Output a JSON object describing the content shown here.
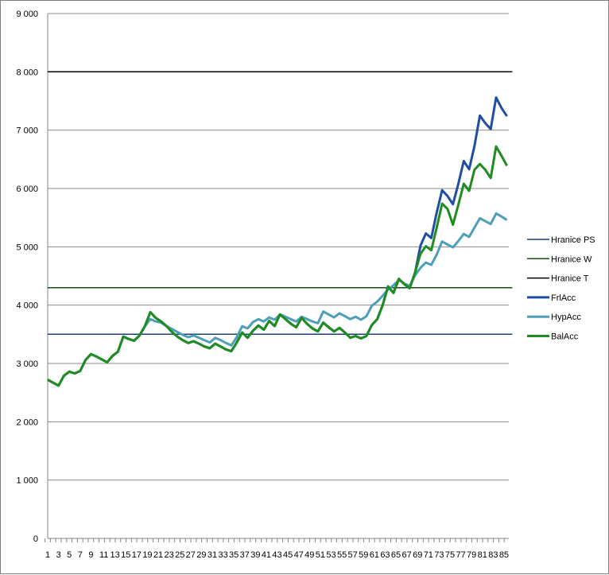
{
  "chart_data": {
    "type": "line",
    "ylim": [
      0,
      9000
    ],
    "yticks": [
      0,
      1000,
      2000,
      3000,
      4000,
      5000,
      6000,
      7000,
      8000,
      9000
    ],
    "ytick_labels": [
      "0",
      "1 000",
      "2 000",
      "3 000",
      "4 000",
      "5 000",
      "6 000",
      "7 000",
      "8 000",
      "9 000"
    ],
    "x": [
      1,
      2,
      3,
      4,
      5,
      6,
      7,
      8,
      9,
      10,
      11,
      12,
      13,
      14,
      15,
      16,
      17,
      18,
      19,
      20,
      21,
      22,
      23,
      24,
      25,
      26,
      27,
      28,
      29,
      30,
      31,
      32,
      33,
      34,
      35,
      36,
      37,
      38,
      39,
      40,
      41,
      42,
      43,
      44,
      45,
      46,
      47,
      48,
      49,
      50,
      51,
      52,
      53,
      54,
      55,
      56,
      57,
      58,
      59,
      60,
      61,
      62,
      63,
      64,
      65,
      66,
      67,
      68,
      69,
      70,
      71,
      72,
      73,
      74,
      75,
      76,
      77,
      78,
      79,
      80,
      81,
      82,
      83,
      84,
      85,
      86
    ],
    "x_tick_labels": [
      "1",
      "3",
      "5",
      "7",
      "9",
      "11",
      "13",
      "15",
      "17",
      "19",
      "21",
      "23",
      "25",
      "27",
      "29",
      "31",
      "33",
      "35",
      "37",
      "39",
      "41",
      "43",
      "45",
      "47",
      "49",
      "51",
      "53",
      "55",
      "57",
      "59",
      "61",
      "63",
      "65",
      "67",
      "69",
      "71",
      "73",
      "75",
      "77",
      "79",
      "81",
      "83",
      "85"
    ],
    "grid": true,
    "legend_position": "right",
    "series": [
      {
        "name": "Hranice PS",
        "color": "#1f3f7a",
        "width": 1.5,
        "x": [
          1,
          87
        ],
        "values": [
          3500,
          3500
        ]
      },
      {
        "name": "Hranice W",
        "color": "#174d17",
        "width": 1.5,
        "x": [
          1,
          87
        ],
        "values": [
          4300,
          4300
        ]
      },
      {
        "name": "Hranice T",
        "color": "#000000",
        "width": 1.5,
        "x": [
          1,
          87
        ],
        "values": [
          8000,
          8000
        ]
      },
      {
        "name": "FrlAcc",
        "color": "#1f4ea3",
        "width": 3,
        "values": [
          2720,
          2670,
          2620,
          2790,
          2860,
          2830,
          2870,
          3060,
          3160,
          3120,
          3070,
          3020,
          3130,
          3200,
          3460,
          3420,
          3390,
          3480,
          3640,
          3880,
          3780,
          3720,
          3640,
          3540,
          3460,
          3400,
          3350,
          3380,
          3340,
          3290,
          3260,
          3340,
          3290,
          3240,
          3210,
          3360,
          3530,
          3440,
          3560,
          3650,
          3580,
          3730,
          3640,
          3840,
          3760,
          3680,
          3620,
          3780,
          3680,
          3600,
          3550,
          3700,
          3620,
          3550,
          3610,
          3530,
          3440,
          3470,
          3430,
          3470,
          3660,
          3760,
          4000,
          4320,
          4210,
          4450,
          4360,
          4290,
          4560,
          5020,
          5230,
          5150,
          5590,
          5970,
          5870,
          5730,
          6080,
          6470,
          6330,
          6730,
          7250,
          7120,
          7020,
          7560,
          7380,
          7240
        ]
      },
      {
        "name": "HypAcc",
        "color": "#4d9fb8",
        "width": 3,
        "values": [
          2720,
          2670,
          2620,
          2790,
          2860,
          2830,
          2870,
          3060,
          3160,
          3120,
          3070,
          3020,
          3130,
          3200,
          3460,
          3420,
          3390,
          3480,
          3640,
          3760,
          3720,
          3700,
          3640,
          3590,
          3540,
          3490,
          3450,
          3480,
          3440,
          3400,
          3360,
          3440,
          3400,
          3350,
          3310,
          3450,
          3640,
          3600,
          3710,
          3760,
          3720,
          3790,
          3750,
          3840,
          3800,
          3760,
          3720,
          3800,
          3760,
          3720,
          3690,
          3890,
          3840,
          3790,
          3860,
          3810,
          3760,
          3800,
          3750,
          3810,
          3990,
          4060,
          4160,
          4270,
          4340,
          4430,
          4370,
          4330,
          4510,
          4640,
          4730,
          4690,
          4870,
          5090,
          5040,
          4990,
          5100,
          5220,
          5170,
          5330,
          5490,
          5440,
          5390,
          5570,
          5520,
          5460
        ]
      },
      {
        "name": "BalAcc",
        "color": "#1e8c1e",
        "width": 3,
        "values": [
          2720,
          2670,
          2620,
          2790,
          2860,
          2830,
          2870,
          3060,
          3160,
          3120,
          3070,
          3020,
          3130,
          3200,
          3460,
          3420,
          3390,
          3480,
          3640,
          3880,
          3780,
          3720,
          3640,
          3540,
          3460,
          3400,
          3350,
          3380,
          3340,
          3290,
          3260,
          3340,
          3290,
          3240,
          3210,
          3360,
          3530,
          3440,
          3560,
          3650,
          3580,
          3730,
          3640,
          3840,
          3760,
          3680,
          3620,
          3780,
          3680,
          3600,
          3550,
          3700,
          3620,
          3550,
          3610,
          3530,
          3440,
          3470,
          3430,
          3470,
          3660,
          3760,
          4000,
          4320,
          4210,
          4450,
          4360,
          4290,
          4560,
          4880,
          5010,
          4940,
          5330,
          5740,
          5650,
          5380,
          5720,
          6080,
          5960,
          6320,
          6420,
          6320,
          6180,
          6720,
          6560,
          6390
        ]
      }
    ]
  }
}
